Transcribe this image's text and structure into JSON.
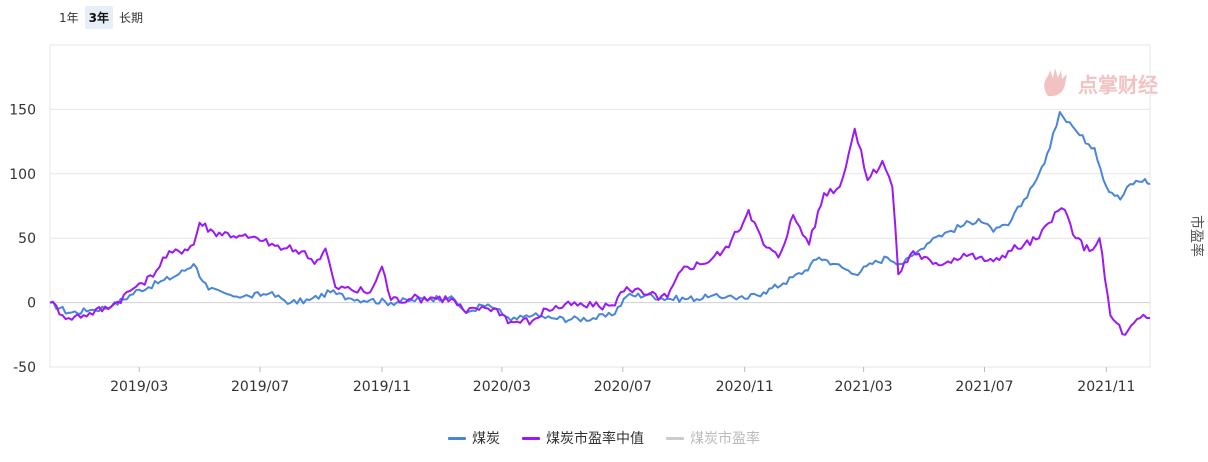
{
  "range_tabs": [
    {
      "label": "1年",
      "active": false
    },
    {
      "label": "3年",
      "active": true
    },
    {
      "label": "长期",
      "active": false
    }
  ],
  "watermark": "点掌财经",
  "chart_data": {
    "type": "line",
    "ylabel": "市盈率",
    "ylim": [
      -50,
      200
    ],
    "yticks": [
      -50,
      0,
      50,
      100,
      150
    ],
    "x_range": [
      "2018-12-01",
      "2021-12-15"
    ],
    "xticks": [
      "2019/03",
      "2019/07",
      "2019/11",
      "2020/03",
      "2020/07",
      "2020/11",
      "2021/03",
      "2021/07",
      "2021/11"
    ],
    "grid": true,
    "legend_position": "bottom",
    "series": [
      {
        "name": "煤炭",
        "color": "#4a86d6",
        "points": [
          [
            "2018-12-01",
            0
          ],
          [
            "2018-12-20",
            -8
          ],
          [
            "2019-01-10",
            -6
          ],
          [
            "2019-02-01",
            -3
          ],
          [
            "2019-03-01",
            10
          ],
          [
            "2019-03-20",
            15
          ],
          [
            "2019-04-10",
            22
          ],
          [
            "2019-04-25",
            30
          ],
          [
            "2019-05-10",
            10
          ],
          [
            "2019-06-01",
            6
          ],
          [
            "2019-06-20",
            5
          ],
          [
            "2019-07-10",
            7
          ],
          [
            "2019-08-01",
            0
          ],
          [
            "2019-08-20",
            2
          ],
          [
            "2019-09-10",
            8
          ],
          [
            "2019-10-01",
            3
          ],
          [
            "2019-10-20",
            2
          ],
          [
            "2019-11-10",
            0
          ],
          [
            "2019-12-01",
            2
          ],
          [
            "2019-12-20",
            3
          ],
          [
            "2020-01-10",
            5
          ],
          [
            "2020-01-25",
            -8
          ],
          [
            "2020-02-10",
            -2
          ],
          [
            "2020-02-25",
            -5
          ],
          [
            "2020-03-10",
            -14
          ],
          [
            "2020-04-01",
            -10
          ],
          [
            "2020-04-20",
            -12
          ],
          [
            "2020-05-10",
            -13
          ],
          [
            "2020-06-01",
            -12
          ],
          [
            "2020-06-20",
            -10
          ],
          [
            "2020-07-05",
            5
          ],
          [
            "2020-07-25",
            6
          ],
          [
            "2020-08-15",
            3
          ],
          [
            "2020-09-05",
            3
          ],
          [
            "2020-09-25",
            4
          ],
          [
            "2020-10-15",
            5
          ],
          [
            "2020-11-01",
            3
          ],
          [
            "2020-11-20",
            8
          ],
          [
            "2020-12-10",
            15
          ],
          [
            "2021-01-01",
            25
          ],
          [
            "2021-01-15",
            35
          ],
          [
            "2021-02-01",
            30
          ],
          [
            "2021-02-20",
            22
          ],
          [
            "2021-03-10",
            30
          ],
          [
            "2021-03-25",
            35
          ],
          [
            "2021-04-10",
            30
          ],
          [
            "2021-04-25",
            40
          ],
          [
            "2021-05-10",
            50
          ],
          [
            "2021-05-25",
            55
          ],
          [
            "2021-06-10",
            60
          ],
          [
            "2021-06-25",
            65
          ],
          [
            "2021-07-10",
            55
          ],
          [
            "2021-07-25",
            60
          ],
          [
            "2021-08-10",
            80
          ],
          [
            "2021-08-25",
            100
          ],
          [
            "2021-09-05",
            120
          ],
          [
            "2021-09-15",
            148
          ],
          [
            "2021-09-25",
            140
          ],
          [
            "2021-10-05",
            130
          ],
          [
            "2021-10-20",
            120
          ],
          [
            "2021-11-01",
            90
          ],
          [
            "2021-11-15",
            80
          ],
          [
            "2021-11-25",
            92
          ],
          [
            "2021-12-10",
            96
          ],
          [
            "2021-12-15",
            92
          ]
        ]
      },
      {
        "name": "煤炭市盈率中值",
        "color": "#9b19f5",
        "points": [
          [
            "2018-12-01",
            0
          ],
          [
            "2018-12-20",
            -12
          ],
          [
            "2019-01-10",
            -8
          ],
          [
            "2019-02-01",
            -3
          ],
          [
            "2019-03-01",
            15
          ],
          [
            "2019-03-15",
            20
          ],
          [
            "2019-03-25",
            35
          ],
          [
            "2019-04-10",
            40
          ],
          [
            "2019-04-25",
            45
          ],
          [
            "2019-05-01",
            62
          ],
          [
            "2019-05-15",
            55
          ],
          [
            "2019-06-10",
            52
          ],
          [
            "2019-07-01",
            48
          ],
          [
            "2019-07-25",
            42
          ],
          [
            "2019-08-15",
            40
          ],
          [
            "2019-08-25",
            30
          ],
          [
            "2019-09-05",
            42
          ],
          [
            "2019-09-15",
            12
          ],
          [
            "2019-10-01",
            10
          ],
          [
            "2019-10-20",
            8
          ],
          [
            "2019-11-01",
            28
          ],
          [
            "2019-11-10",
            2
          ],
          [
            "2019-12-01",
            3
          ],
          [
            "2019-12-20",
            4
          ],
          [
            "2020-01-10",
            3
          ],
          [
            "2020-01-25",
            -8
          ],
          [
            "2020-02-10",
            -3
          ],
          [
            "2020-02-25",
            -5
          ],
          [
            "2020-03-10",
            -15
          ],
          [
            "2020-04-01",
            -14
          ],
          [
            "2020-04-15",
            -5
          ],
          [
            "2020-05-10",
            -2
          ],
          [
            "2020-06-01",
            -3
          ],
          [
            "2020-06-20",
            -2
          ],
          [
            "2020-07-05",
            12
          ],
          [
            "2020-07-25",
            6
          ],
          [
            "2020-08-15",
            4
          ],
          [
            "2020-09-01",
            28
          ],
          [
            "2020-09-20",
            30
          ],
          [
            "2020-10-10",
            40
          ],
          [
            "2020-10-25",
            55
          ],
          [
            "2020-11-05",
            72
          ],
          [
            "2020-11-20",
            45
          ],
          [
            "2020-12-05",
            35
          ],
          [
            "2020-12-20",
            68
          ],
          [
            "2021-01-05",
            45
          ],
          [
            "2021-01-20",
            85
          ],
          [
            "2021-02-05",
            90
          ],
          [
            "2021-02-20",
            135
          ],
          [
            "2021-03-05",
            95
          ],
          [
            "2021-03-20",
            110
          ],
          [
            "2021-03-30",
            90
          ],
          [
            "2021-04-05",
            22
          ],
          [
            "2021-04-20",
            40
          ],
          [
            "2021-05-10",
            30
          ],
          [
            "2021-05-25",
            32
          ],
          [
            "2021-06-10",
            38
          ],
          [
            "2021-06-25",
            35
          ],
          [
            "2021-07-10",
            32
          ],
          [
            "2021-07-25",
            40
          ],
          [
            "2021-08-10",
            45
          ],
          [
            "2021-08-25",
            50
          ],
          [
            "2021-09-10",
            70
          ],
          [
            "2021-09-20",
            72
          ],
          [
            "2021-10-01",
            50
          ],
          [
            "2021-10-15",
            40
          ],
          [
            "2021-10-25",
            50
          ],
          [
            "2021-11-05",
            -10
          ],
          [
            "2021-11-20",
            -25
          ],
          [
            "2021-12-05",
            -12
          ],
          [
            "2021-12-15",
            -12
          ]
        ]
      },
      {
        "name": "煤炭市盈率",
        "color": "#cccccc",
        "hidden": true,
        "points": []
      }
    ]
  }
}
